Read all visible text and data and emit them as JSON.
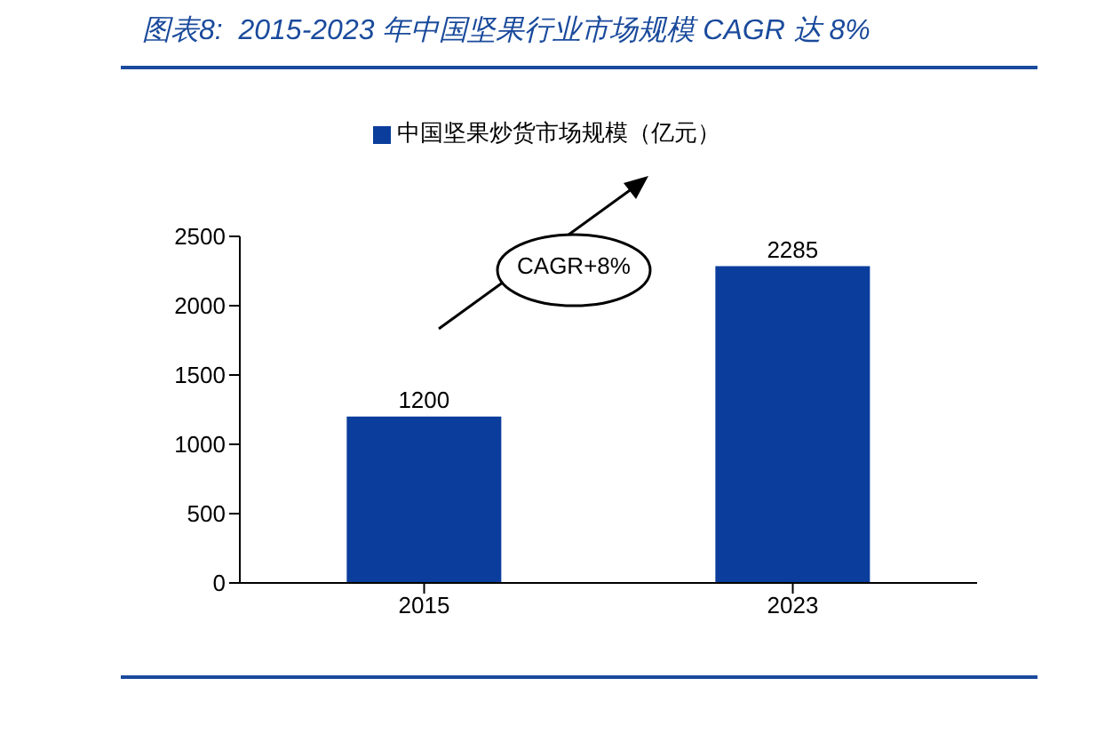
{
  "chart_data": {
    "type": "bar",
    "title": "图表8:  2015-2023 年中国坚果行业市场规模 CAGR 达 8%",
    "categories": [
      "2015",
      "2023"
    ],
    "series": [
      {
        "name": "中国坚果炒货市场规模（亿元）",
        "color": "#0b3d9c",
        "values": [
          1200,
          2285
        ]
      }
    ],
    "ylim": [
      0,
      2500
    ],
    "yticks": [
      0,
      500,
      1000,
      1500,
      2000,
      2500
    ],
    "grid": false,
    "legend": "top",
    "data_labels": true,
    "annotations": [
      "CAGR+8%"
    ]
  }
}
